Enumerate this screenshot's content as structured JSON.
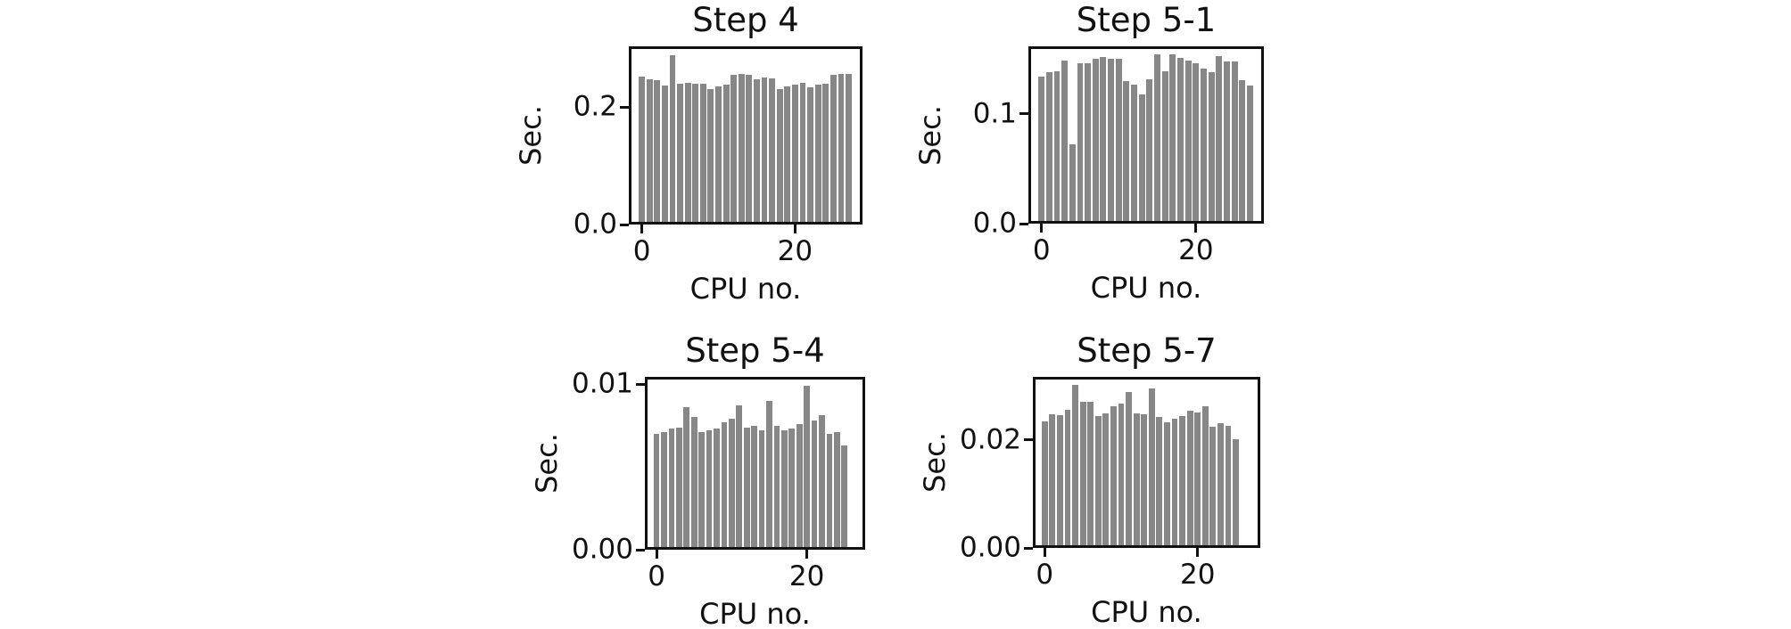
{
  "figure": {
    "background": "#ffffff",
    "bar_color": "#878787",
    "spine_color": "#111111",
    "text_color": "#111111"
  },
  "chart_data": [
    {
      "type": "bar",
      "title": "Step 4",
      "xlabel": "CPU no.",
      "ylabel": "Sec.",
      "x": [
        0,
        1,
        2,
        3,
        4,
        5,
        6,
        7,
        8,
        9,
        10,
        11,
        12,
        13,
        14,
        15,
        16,
        17,
        18,
        19,
        20,
        21,
        22,
        23,
        24,
        25,
        26,
        27
      ],
      "values": [
        0.252,
        0.247,
        0.246,
        0.236,
        0.289,
        0.24,
        0.241,
        0.24,
        0.24,
        0.231,
        0.235,
        0.238,
        0.255,
        0.256,
        0.255,
        0.247,
        0.25,
        0.249,
        0.231,
        0.235,
        0.238,
        0.242,
        0.233,
        0.239,
        0.24,
        0.255,
        0.256,
        0.256
      ],
      "bar_width": 0.8,
      "xlim": [
        -1.7,
        28.8
      ],
      "ylim": [
        0,
        0.3035
      ],
      "xticks": [
        {
          "value": 0,
          "label": "0"
        },
        {
          "value": 20,
          "label": "20"
        }
      ],
      "yticks": [
        {
          "value": 0.0,
          "label": "0.0"
        },
        {
          "value": 0.2,
          "label": "0.2"
        }
      ],
      "grid": false,
      "legend": false
    },
    {
      "type": "bar",
      "title": "Step 5-1",
      "xlabel": "CPU no.",
      "ylabel": "Sec.",
      "x": [
        0,
        1,
        2,
        3,
        4,
        5,
        6,
        7,
        8,
        9,
        10,
        11,
        12,
        13,
        14,
        15,
        16,
        17,
        18,
        19,
        20,
        21,
        22,
        23,
        24,
        25,
        26,
        27
      ],
      "values": [
        0.134,
        0.138,
        0.139,
        0.149,
        0.072,
        0.146,
        0.146,
        0.15,
        0.152,
        0.15,
        0.15,
        0.13,
        0.127,
        0.118,
        0.132,
        0.154,
        0.139,
        0.154,
        0.151,
        0.149,
        0.146,
        0.141,
        0.138,
        0.153,
        0.148,
        0.148,
        0.131,
        0.126
      ],
      "bar_width": 0.8,
      "xlim": [
        -1.7,
        28.8
      ],
      "ylim": [
        0,
        0.1617
      ],
      "xticks": [
        {
          "value": 0,
          "label": "0"
        },
        {
          "value": 20,
          "label": "20"
        }
      ],
      "yticks": [
        {
          "value": 0.0,
          "label": "0.0"
        },
        {
          "value": 0.1,
          "label": "0.1"
        }
      ],
      "grid": false,
      "legend": false
    },
    {
      "type": "bar",
      "title": "Step 5-4",
      "xlabel": "CPU no.",
      "ylabel": "Sec.",
      "x": [
        0,
        1,
        2,
        3,
        4,
        5,
        6,
        7,
        8,
        9,
        10,
        11,
        12,
        13,
        14,
        15,
        16,
        17,
        18,
        19,
        20,
        21,
        22,
        23,
        24,
        25
      ],
      "values": [
        0.007,
        0.0071,
        0.0073,
        0.0074,
        0.0086,
        0.008,
        0.0071,
        0.0072,
        0.0073,
        0.0077,
        0.0079,
        0.0087,
        0.0074,
        0.0075,
        0.0072,
        0.009,
        0.0075,
        0.0072,
        0.0073,
        0.0076,
        0.0099,
        0.0078,
        0.0081,
        0.007,
        0.0071,
        0.0063
      ],
      "bar_width": 0.8,
      "xlim": [
        -1.55,
        27.75
      ],
      "ylim": [
        0,
        0.01044
      ],
      "xticks": [
        {
          "value": 0,
          "label": "0"
        },
        {
          "value": 20,
          "label": "20"
        }
      ],
      "yticks": [
        {
          "value": 0.0,
          "label": "0.00"
        },
        {
          "value": 0.01,
          "label": "0.01"
        }
      ],
      "grid": false,
      "legend": false
    },
    {
      "type": "bar",
      "title": "Step 5-7",
      "xlabel": "CPU no.",
      "ylabel": "Sec.",
      "x": [
        0,
        1,
        2,
        3,
        4,
        5,
        6,
        7,
        8,
        9,
        10,
        11,
        12,
        13,
        14,
        15,
        16,
        17,
        18,
        19,
        20,
        21,
        22,
        23,
        24,
        25
      ],
      "values": [
        0.0234,
        0.0248,
        0.0246,
        0.0256,
        0.0302,
        0.027,
        0.0271,
        0.0244,
        0.0249,
        0.0262,
        0.0267,
        0.0289,
        0.0249,
        0.0248,
        0.0295,
        0.0243,
        0.0233,
        0.024,
        0.0244,
        0.0254,
        0.0251,
        0.0263,
        0.0224,
        0.0231,
        0.0226,
        0.0202
      ],
      "bar_width": 0.8,
      "xlim": [
        -1.55,
        28.2
      ],
      "ylim": [
        0,
        0.0317
      ],
      "xticks": [
        {
          "value": 0,
          "label": "0"
        },
        {
          "value": 20,
          "label": "20"
        }
      ],
      "yticks": [
        {
          "value": 0.0,
          "label": "0.00"
        },
        {
          "value": 0.02,
          "label": "0.02"
        }
      ],
      "grid": false,
      "legend": false
    }
  ]
}
